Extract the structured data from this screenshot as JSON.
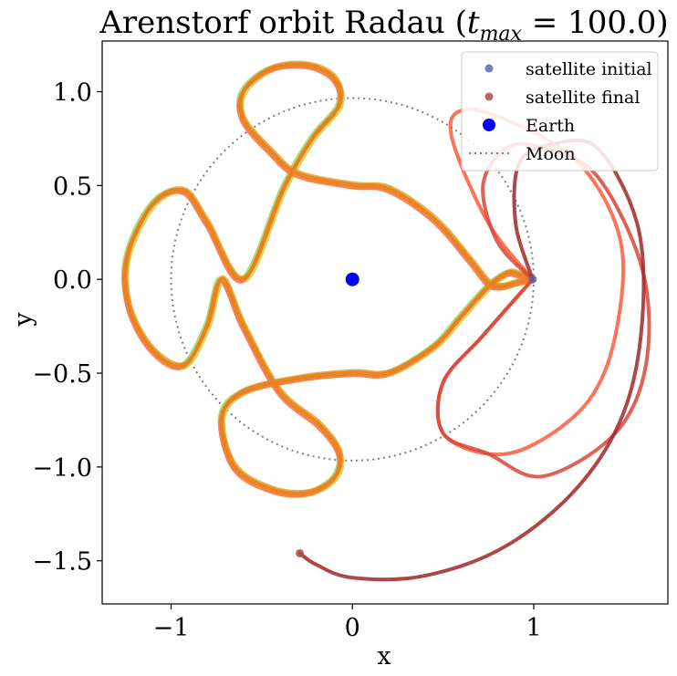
{
  "chart_data": {
    "type": "line",
    "title_main": "Arenstorf orbit Radau (",
    "title_math_var": "t",
    "title_math_sub": "max",
    "title_rest": " = 100.0)",
    "xlabel": "x",
    "ylabel": "y",
    "xlim": [
      -1.38,
      1.74
    ],
    "ylim": [
      -1.73,
      1.27
    ],
    "xticks": [
      -1,
      0,
      1
    ],
    "xtick_labels": [
      "−1",
      "0",
      "1"
    ],
    "yticks": [
      1.0,
      0.5,
      0.0,
      -0.5,
      -1.0,
      -1.5
    ],
    "ytick_labels": [
      "1.0",
      "0.5",
      "0.0",
      "−0.5",
      "−1.0",
      "−1.5"
    ],
    "grid": false,
    "legend_placement": "top-right",
    "legend": [
      {
        "key": "initial",
        "label": "satellite initial"
      },
      {
        "key": "final",
        "label": "satellite final"
      },
      {
        "key": "earth",
        "label": "Earth"
      },
      {
        "key": "moon",
        "label": "Moon"
      }
    ],
    "earth": {
      "x": 0.0,
      "y": 0.0,
      "color": "#0000ff"
    },
    "satellite_initial": {
      "x": 0.994,
      "y": 0.0,
      "color": "#5a5ab5"
    },
    "satellite_final": {
      "x": -0.29,
      "y": -1.46,
      "color": "#b24a4a"
    },
    "moon_orbit": {
      "radius": 1.0,
      "color": "#7f7f7f"
    },
    "stable_orbit_points": [
      [
        0.994,
        0.0
      ],
      [
        0.9,
        0.03
      ],
      [
        0.85,
        0.03
      ],
      [
        0.75,
        -0.04
      ],
      [
        0.6,
        -0.2
      ],
      [
        0.45,
        -0.36
      ],
      [
        0.2,
        -0.5
      ],
      [
        0.0,
        -0.5
      ],
      [
        -0.3,
        -0.53
      ],
      [
        -0.6,
        -0.6
      ],
      [
        -0.72,
        -0.74
      ],
      [
        -0.65,
        -1.0
      ],
      [
        -0.45,
        -1.12
      ],
      [
        -0.25,
        -1.14
      ],
      [
        -0.1,
        -1.06
      ],
      [
        -0.07,
        -0.93
      ],
      [
        -0.18,
        -0.78
      ],
      [
        -0.4,
        -0.6
      ],
      [
        -0.6,
        -0.25
      ],
      [
        -0.72,
        0.0
      ],
      [
        -0.8,
        -0.25
      ],
      [
        -0.93,
        -0.46
      ],
      [
        -1.1,
        -0.38
      ],
      [
        -1.23,
        -0.15
      ],
      [
        -1.24,
        0.12
      ],
      [
        -1.1,
        0.4
      ],
      [
        -0.93,
        0.47
      ],
      [
        -0.8,
        0.3
      ],
      [
        -0.6,
        0.0
      ],
      [
        -0.38,
        0.48
      ],
      [
        -0.22,
        0.75
      ],
      [
        -0.07,
        0.93
      ],
      [
        -0.1,
        1.07
      ],
      [
        -0.25,
        1.14
      ],
      [
        -0.45,
        1.12
      ],
      [
        -0.6,
        1.0
      ],
      [
        -0.6,
        0.85
      ],
      [
        -0.45,
        0.68
      ],
      [
        -0.3,
        0.56
      ],
      [
        0.0,
        0.5
      ],
      [
        0.2,
        0.48
      ],
      [
        0.45,
        0.32
      ],
      [
        0.65,
        0.1
      ],
      [
        0.75,
        -0.02
      ],
      [
        0.82,
        -0.04
      ],
      [
        0.9,
        -0.02
      ],
      [
        0.994,
        0.0
      ]
    ],
    "stable_colors": [
      "#6ad0c0",
      "#9bd85a",
      "#c8d440",
      "#e8a030",
      "#ff7040",
      "#e8801a"
    ],
    "divergent_series": [
      {
        "color": "#ff5a3c",
        "points": [
          [
            0.994,
            0.0
          ],
          [
            0.75,
            0.3
          ],
          [
            0.55,
            0.75
          ],
          [
            0.6,
            0.9
          ],
          [
            0.85,
            0.85
          ],
          [
            1.25,
            0.62
          ],
          [
            1.48,
            0.2
          ],
          [
            1.45,
            -0.3
          ],
          [
            1.3,
            -0.65
          ],
          [
            1.0,
            -0.88
          ],
          [
            0.75,
            -0.93
          ],
          [
            0.5,
            -0.82
          ],
          [
            0.5,
            -0.55
          ],
          [
            0.72,
            -0.3
          ],
          [
            0.994,
            0.0
          ]
        ]
      },
      {
        "color": "#d9463a",
        "points": [
          [
            0.994,
            0.0
          ],
          [
            0.8,
            0.2
          ],
          [
            0.72,
            0.5
          ],
          [
            0.85,
            0.7
          ],
          [
            1.05,
            0.7
          ],
          [
            1.35,
            0.55
          ],
          [
            1.6,
            0.05
          ],
          [
            1.62,
            -0.45
          ],
          [
            1.45,
            -0.82
          ],
          [
            1.05,
            -1.05
          ],
          [
            0.75,
            -0.93
          ],
          [
            0.5,
            -0.82
          ],
          [
            0.5,
            -0.55
          ],
          [
            0.72,
            -0.3
          ],
          [
            0.994,
            0.0
          ]
        ]
      },
      {
        "color": "#a02828",
        "points": [
          [
            0.994,
            0.0
          ],
          [
            0.9,
            0.3
          ],
          [
            0.92,
            0.62
          ],
          [
            1.1,
            0.72
          ],
          [
            1.35,
            0.7
          ],
          [
            1.57,
            0.3
          ],
          [
            1.6,
            -0.2
          ],
          [
            1.5,
            -0.7
          ],
          [
            1.25,
            -1.1
          ],
          [
            0.85,
            -1.42
          ],
          [
            0.4,
            -1.58
          ],
          [
            0.0,
            -1.59
          ],
          [
            -0.2,
            -1.52
          ],
          [
            -0.29,
            -1.46
          ]
        ]
      }
    ]
  }
}
